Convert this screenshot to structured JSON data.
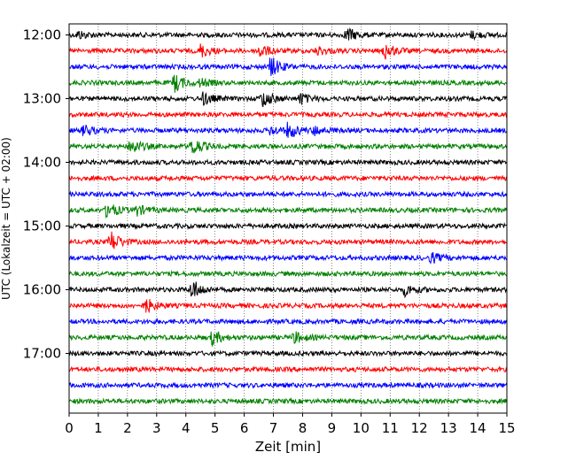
{
  "chart_data": {
    "type": "line",
    "title": "",
    "xlabel": "Zeit  [min]",
    "ylabel": "UTC (Lokalzeit = UTC + 02:00)",
    "xlim": [
      0,
      15
    ],
    "x_ticks": [
      0,
      1,
      2,
      3,
      4,
      5,
      6,
      7,
      8,
      9,
      10,
      11,
      12,
      13,
      14,
      15
    ],
    "y_tick_labels": [
      "12:00",
      "13:00",
      "14:00",
      "15:00",
      "16:00",
      "17:00"
    ],
    "vertical_grid": "dotted at every minute",
    "trace_interval_min": 15,
    "trace_colors": [
      "#000000",
      "#ff0000",
      "#0000ff",
      "#008000"
    ],
    "traces": [
      {
        "start": "12:00",
        "color": "#000000",
        "events": [
          {
            "t": 0.3,
            "amp": 0.7
          },
          {
            "t": 9.5,
            "amp": 1.3
          },
          {
            "t": 13.8,
            "amp": 0.6
          }
        ]
      },
      {
        "start": "12:15",
        "color": "#ff0000",
        "events": [
          {
            "t": 4.5,
            "amp": 1.1
          },
          {
            "t": 6.5,
            "amp": 1.3
          },
          {
            "t": 8.5,
            "amp": 0.7
          },
          {
            "t": 10.8,
            "amp": 1.5
          }
        ]
      },
      {
        "start": "12:30",
        "color": "#0000ff",
        "events": [
          {
            "t": 6.9,
            "amp": 1.8
          }
        ]
      },
      {
        "start": "12:45",
        "color": "#008000",
        "events": [
          {
            "t": 3.6,
            "amp": 1.6
          },
          {
            "t": 4.5,
            "amp": 0.7
          }
        ]
      },
      {
        "start": "13:00",
        "color": "#000000",
        "events": [
          {
            "t": 4.6,
            "amp": 1.1
          },
          {
            "t": 6.6,
            "amp": 1.6
          },
          {
            "t": 7.9,
            "amp": 1.0
          }
        ]
      },
      {
        "start": "13:15",
        "color": "#ff0000",
        "events": []
      },
      {
        "start": "13:30",
        "color": "#0000ff",
        "events": [
          {
            "t": 0.5,
            "amp": 1.0
          },
          {
            "t": 6.9,
            "amp": 0.8
          },
          {
            "t": 7.5,
            "amp": 1.4
          },
          {
            "t": 8.4,
            "amp": 0.8
          }
        ]
      },
      {
        "start": "13:45",
        "color": "#008000",
        "events": [
          {
            "t": 2.1,
            "amp": 1.5
          },
          {
            "t": 4.2,
            "amp": 1.8
          }
        ]
      },
      {
        "start": "14:00",
        "color": "#000000",
        "events": []
      },
      {
        "start": "14:15",
        "color": "#ff0000",
        "events": []
      },
      {
        "start": "14:30",
        "color": "#0000ff",
        "events": []
      },
      {
        "start": "14:45",
        "color": "#008000",
        "events": [
          {
            "t": 1.3,
            "amp": 1.5
          },
          {
            "t": 2.3,
            "amp": 0.9
          }
        ]
      },
      {
        "start": "15:00",
        "color": "#000000",
        "events": []
      },
      {
        "start": "15:15",
        "color": "#ff0000",
        "events": [
          {
            "t": 1.4,
            "amp": 2.0
          }
        ]
      },
      {
        "start": "15:30",
        "color": "#0000ff",
        "events": [
          {
            "t": 12.4,
            "amp": 0.9
          }
        ]
      },
      {
        "start": "15:45",
        "color": "#008000",
        "events": []
      },
      {
        "start": "16:00",
        "color": "#000000",
        "events": [
          {
            "t": 4.2,
            "amp": 1.8
          },
          {
            "t": 11.5,
            "amp": 1.0
          }
        ]
      },
      {
        "start": "16:15",
        "color": "#ff0000",
        "events": [
          {
            "t": 2.6,
            "amp": 1.4
          }
        ]
      },
      {
        "start": "16:30",
        "color": "#0000ff",
        "events": []
      },
      {
        "start": "16:45",
        "color": "#008000",
        "events": [
          {
            "t": 4.9,
            "amp": 1.2
          },
          {
            "t": 7.7,
            "amp": 1.0
          }
        ]
      },
      {
        "start": "17:00",
        "color": "#000000",
        "events": []
      },
      {
        "start": "17:15",
        "color": "#ff0000",
        "events": []
      },
      {
        "start": "17:30",
        "color": "#0000ff",
        "events": []
      },
      {
        "start": "17:45",
        "color": "#008000",
        "events": []
      }
    ]
  }
}
